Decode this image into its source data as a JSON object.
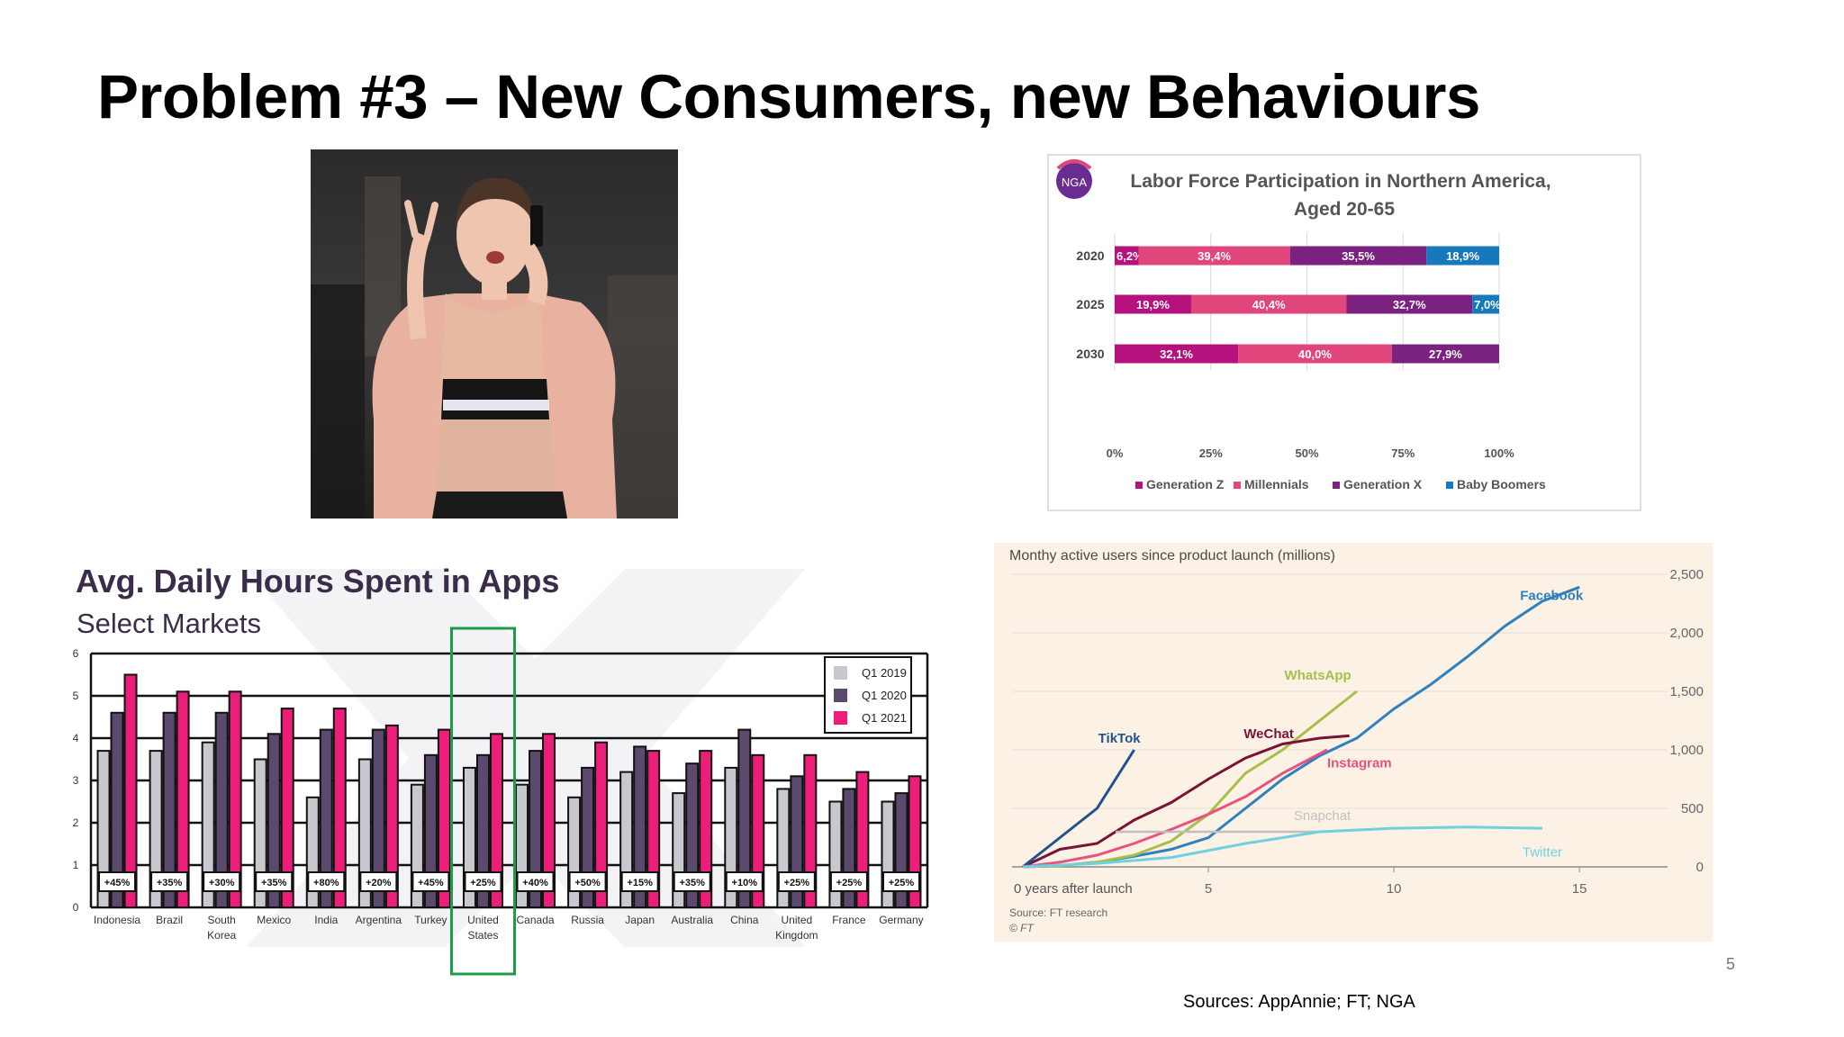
{
  "slide": {
    "title": "Problem #3 – New Consumers, new Behaviours",
    "sources": "Sources: AppAnnie; FT; NGA",
    "page_number": "5"
  },
  "photo": {
    "subject": "woman-phone-peace-sign"
  },
  "colors": {
    "gen_z": "#B5127E",
    "millennials": "#E0457B",
    "gen_x": "#7B2180",
    "boomers": "#1679BE",
    "q1_2019": "#C8C8CE",
    "q1_2020": "#5B4A6E",
    "q1_2021": "#EC1E79",
    "highlight": "#1E9A4B",
    "mau_bg": "#FCF1E5",
    "facebook": "#2F80BE",
    "whatsapp": "#A6BF4B",
    "wechat": "#7A1336",
    "tiktok": "#20538F",
    "instagram": "#E9527C",
    "snapchat": "#BFBFBF",
    "twitter": "#6FD1E0"
  },
  "chart_data": [
    {
      "id": "labor-force",
      "type": "bar",
      "orientation": "horizontal-stacked",
      "logo": "NGA",
      "title_line1": "Labor Force Participation in Northern America,",
      "title_line2": "Aged 20-65",
      "categories": [
        "2020",
        "2025",
        "2030"
      ],
      "series": [
        {
          "name": "Generation Z",
          "values": [
            6.2,
            19.9,
            32.1
          ],
          "labels": [
            "6,2%",
            "19,9%",
            "32,1%"
          ]
        },
        {
          "name": "Millennials",
          "values": [
            39.4,
            40.4,
            40.0
          ],
          "labels": [
            "39,4%",
            "40,4%",
            "40,0%"
          ]
        },
        {
          "name": "Generation X",
          "values": [
            35.5,
            32.7,
            27.9
          ],
          "labels": [
            "35,5%",
            "32,7%",
            "27,9%"
          ]
        },
        {
          "name": "Baby Boomers",
          "values": [
            18.9,
            7.0,
            0
          ],
          "labels": [
            "18,9%",
            "7,0%",
            ""
          ]
        }
      ],
      "xticks": [
        "0%",
        "25%",
        "50%",
        "75%",
        "100%"
      ],
      "xlim": [
        0,
        100
      ],
      "legend_position": "bottom"
    },
    {
      "id": "daily-hours-apps",
      "type": "bar",
      "title": "Avg. Daily Hours Spent in Apps",
      "subtitle": "Select Markets",
      "categories": [
        "Indonesia",
        "Brazil",
        "South Korea",
        "Mexico",
        "India",
        "Argentina",
        "Turkey",
        "United States",
        "Canada",
        "Russia",
        "Japan",
        "Australia",
        "China",
        "United Kingdom",
        "France",
        "Germany"
      ],
      "category_lines": [
        [
          "Indonesia"
        ],
        [
          "Brazil"
        ],
        [
          "South",
          "Korea"
        ],
        [
          "Mexico"
        ],
        [
          "India"
        ],
        [
          "Argentina"
        ],
        [
          "Turkey"
        ],
        [
          "United",
          "States"
        ],
        [
          "Canada"
        ],
        [
          "Russia"
        ],
        [
          "Japan"
        ],
        [
          "Australia"
        ],
        [
          "China"
        ],
        [
          "United",
          "Kingdom"
        ],
        [
          "France"
        ],
        [
          "Germany"
        ]
      ],
      "series": [
        {
          "name": "Q1 2019",
          "values": [
            3.7,
            3.7,
            3.9,
            3.5,
            2.6,
            3.5,
            2.9,
            3.3,
            2.9,
            2.6,
            3.2,
            2.7,
            3.3,
            2.8,
            2.5,
            2.5
          ]
        },
        {
          "name": "Q1 2020",
          "values": [
            4.6,
            4.6,
            4.6,
            4.1,
            4.2,
            4.2,
            3.6,
            3.6,
            3.7,
            3.3,
            3.8,
            3.4,
            4.2,
            3.1,
            2.8,
            2.7
          ]
        },
        {
          "name": "Q1 2021",
          "values": [
            5.5,
            5.1,
            5.1,
            4.7,
            4.7,
            4.3,
            4.2,
            4.1,
            4.1,
            3.9,
            3.7,
            3.7,
            3.6,
            3.6,
            3.2,
            3.1
          ]
        }
      ],
      "growth_labels": [
        "+45%",
        "+35%",
        "+30%",
        "+35%",
        "+80%",
        "+20%",
        "+45%",
        "+25%",
        "+40%",
        "+50%",
        "+15%",
        "+35%",
        "+10%",
        "+25%",
        "+25%",
        "+25%"
      ],
      "yticks": [
        "0",
        "1",
        "2",
        "3",
        "4",
        "5",
        "6"
      ],
      "ylim": [
        0,
        6
      ],
      "highlighted_category": "United States",
      "legend_position": "top-right"
    },
    {
      "id": "monthly-active-users",
      "type": "line",
      "title": "Monthy active users since product launch (millions)",
      "xlabel_first": "0 years after launch",
      "xticks": [
        "5",
        "10",
        "15"
      ],
      "yticks": [
        "0",
        "500",
        "1,000",
        "1,500",
        "2,000",
        "2,500"
      ],
      "xlim": [
        0,
        16.5
      ],
      "ylim": [
        0,
        2600
      ],
      "source": "Source: FT research",
      "credit": "© FT",
      "series": [
        {
          "name": "Facebook",
          "x": [
            0,
            1,
            2,
            3,
            4,
            5,
            6,
            7,
            8,
            9,
            10,
            11,
            12,
            13,
            14,
            15
          ],
          "y": [
            0,
            10,
            40,
            90,
            150,
            250,
            500,
            750,
            950,
            1100,
            1350,
            1560,
            1800,
            2060,
            2270,
            2390
          ]
        },
        {
          "name": "WhatsApp",
          "x": [
            0,
            1,
            2,
            3,
            4,
            5,
            6,
            7,
            8,
            9
          ],
          "y": [
            0,
            10,
            40,
            100,
            220,
            450,
            800,
            1000,
            1250,
            1500
          ]
        },
        {
          "name": "WeChat",
          "x": [
            0,
            1,
            2,
            3,
            4,
            5,
            6,
            7,
            8,
            8.8
          ],
          "y": [
            0,
            150,
            200,
            400,
            550,
            750,
            930,
            1050,
            1100,
            1120
          ]
        },
        {
          "name": "TikTok",
          "x": [
            0,
            1,
            2,
            3
          ],
          "y": [
            0,
            250,
            500,
            1000
          ]
        },
        {
          "name": "Instagram",
          "x": [
            0,
            1,
            2,
            3,
            4,
            5,
            6,
            7,
            8.2
          ],
          "y": [
            0,
            40,
            100,
            200,
            320,
            450,
            600,
            800,
            1000
          ]
        },
        {
          "name": "Snapchat",
          "x": [
            2.5,
            4,
            5,
            6,
            7,
            8.2
          ],
          "y": [
            300,
            300,
            300,
            300,
            300,
            300
          ]
        },
        {
          "name": "Twitter",
          "x": [
            0,
            2,
            4,
            6,
            8,
            10,
            12,
            14
          ],
          "y": [
            0,
            30,
            80,
            200,
            300,
            330,
            340,
            330
          ]
        }
      ]
    }
  ]
}
